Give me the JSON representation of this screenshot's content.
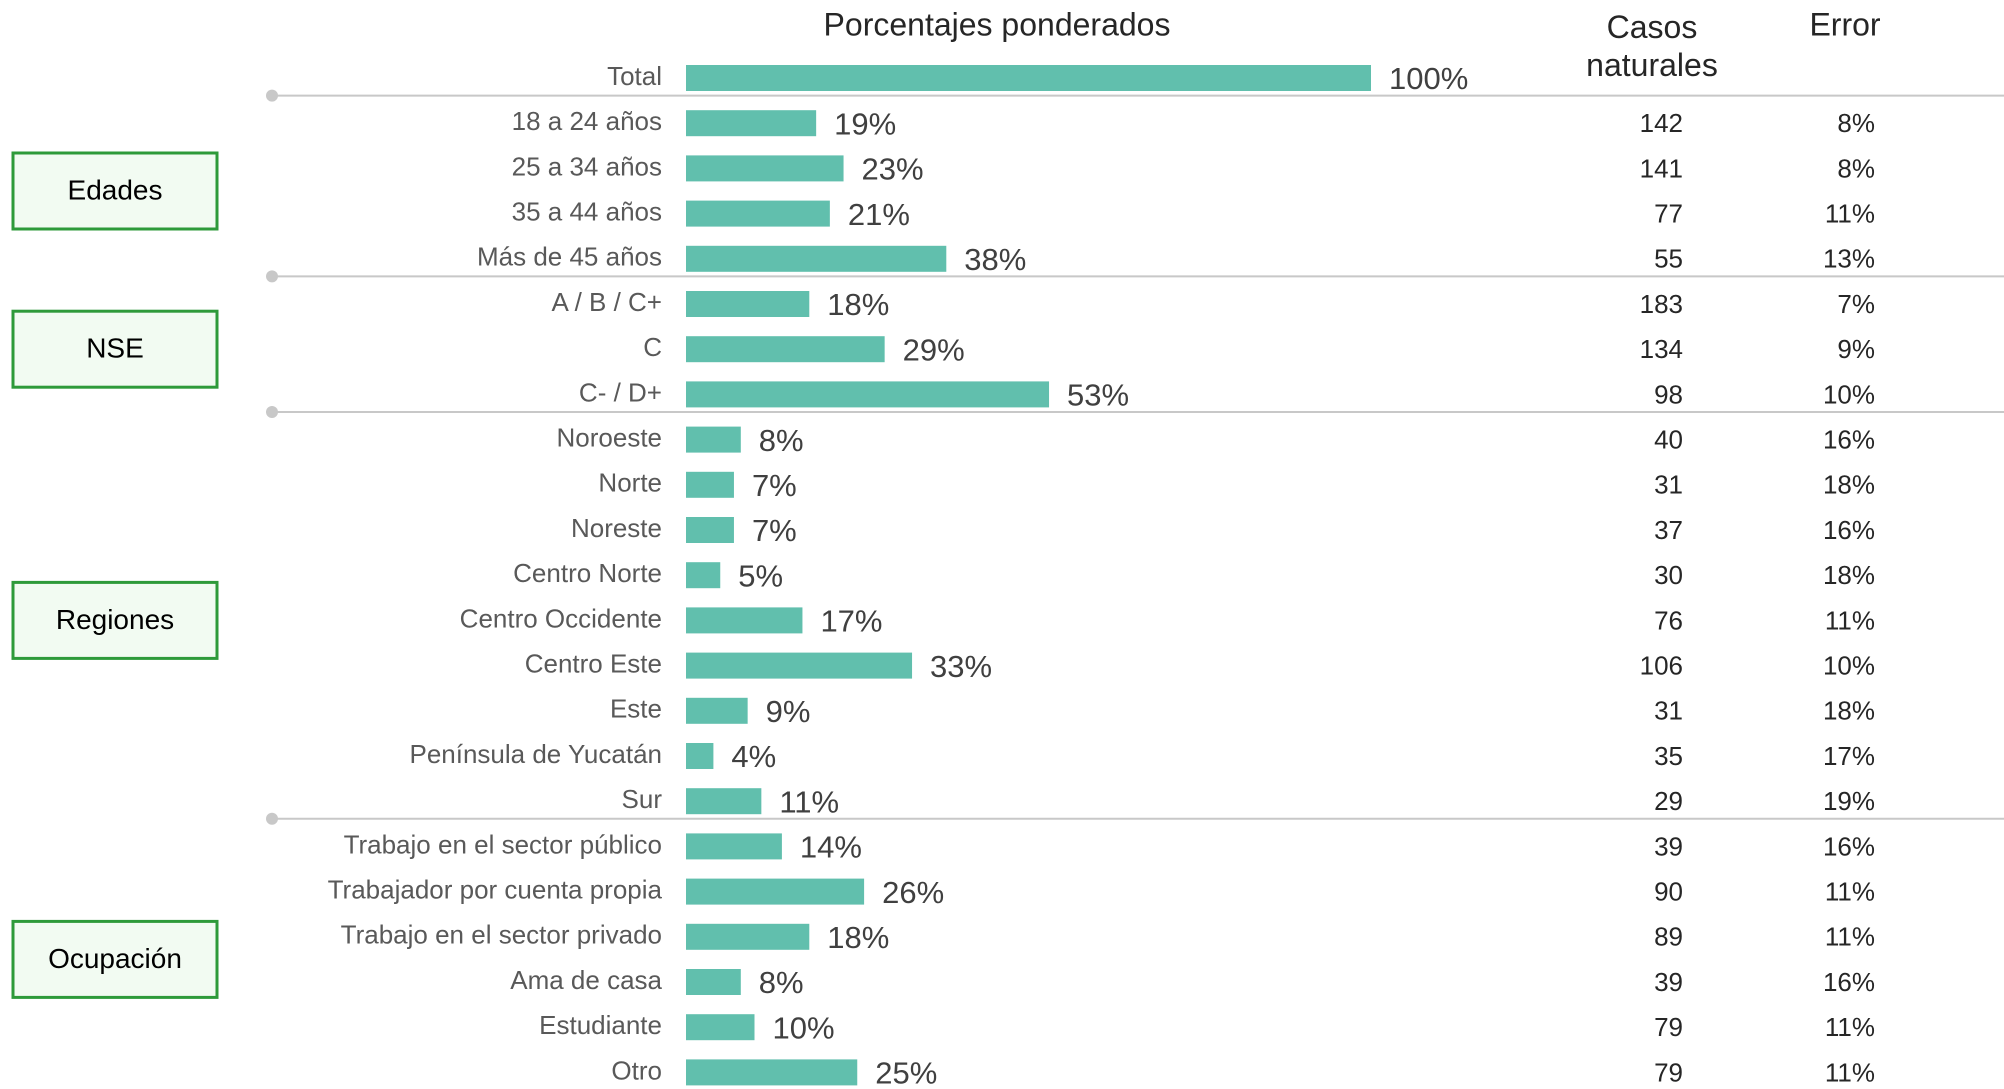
{
  "chart_data": {
    "type": "bar",
    "title": "Porcentajes ponderados",
    "casos_header": "Casos naturales",
    "error_header": "Error",
    "color": "#61bfad",
    "total": {
      "category": "Total",
      "value": 100,
      "value_label": "100%"
    },
    "groups": [
      {
        "label": "Edades",
        "categories": [
          "18 a 24 años",
          "25 a 34 años",
          "35 a 44 años",
          "Más de 45 años"
        ],
        "values": [
          19,
          23,
          21,
          38
        ],
        "value_labels": [
          "19%",
          "23%",
          "21%",
          "38%"
        ],
        "casos": [
          142,
          141,
          77,
          55
        ],
        "error": [
          "8%",
          "8%",
          "11%",
          "13%"
        ]
      },
      {
        "label": "NSE",
        "categories": [
          "A / B / C+",
          "C",
          "C- / D+"
        ],
        "values": [
          18,
          29,
          53
        ],
        "value_labels": [
          "18%",
          "29%",
          "53%"
        ],
        "casos": [
          183,
          134,
          98
        ],
        "error": [
          "7%",
          "9%",
          "10%"
        ]
      },
      {
        "label": "Regiones",
        "categories": [
          "Noroeste",
          "Norte",
          "Noreste",
          "Centro Norte",
          "Centro Occidente",
          "Centro Este",
          "Este",
          "Península de Yucatán",
          "Sur"
        ],
        "values": [
          8,
          7,
          7,
          5,
          17,
          33,
          9,
          4,
          11
        ],
        "value_labels": [
          "8%",
          "7%",
          "7%",
          "5%",
          "17%",
          "33%",
          "9%",
          "4%",
          "11%"
        ],
        "casos": [
          40,
          31,
          37,
          30,
          76,
          106,
          31,
          35,
          29
        ],
        "error": [
          "16%",
          "18%",
          "16%",
          "18%",
          "11%",
          "10%",
          "18%",
          "17%",
          "19%"
        ]
      },
      {
        "label": "Ocupación",
        "categories": [
          "Trabajo en el sector público",
          "Trabajador por cuenta propia",
          "Trabajo en el sector privado",
          "Ama de casa",
          "Estudiante",
          "Otro"
        ],
        "values": [
          14,
          26,
          18,
          8,
          10,
          25
        ],
        "value_labels": [
          "14%",
          "26%",
          "18%",
          "8%",
          "10%",
          "25%"
        ],
        "casos": [
          39,
          90,
          89,
          39,
          79,
          79
        ],
        "error": [
          "16%",
          "11%",
          "11%",
          "16%",
          "11%",
          "11%"
        ]
      }
    ]
  }
}
